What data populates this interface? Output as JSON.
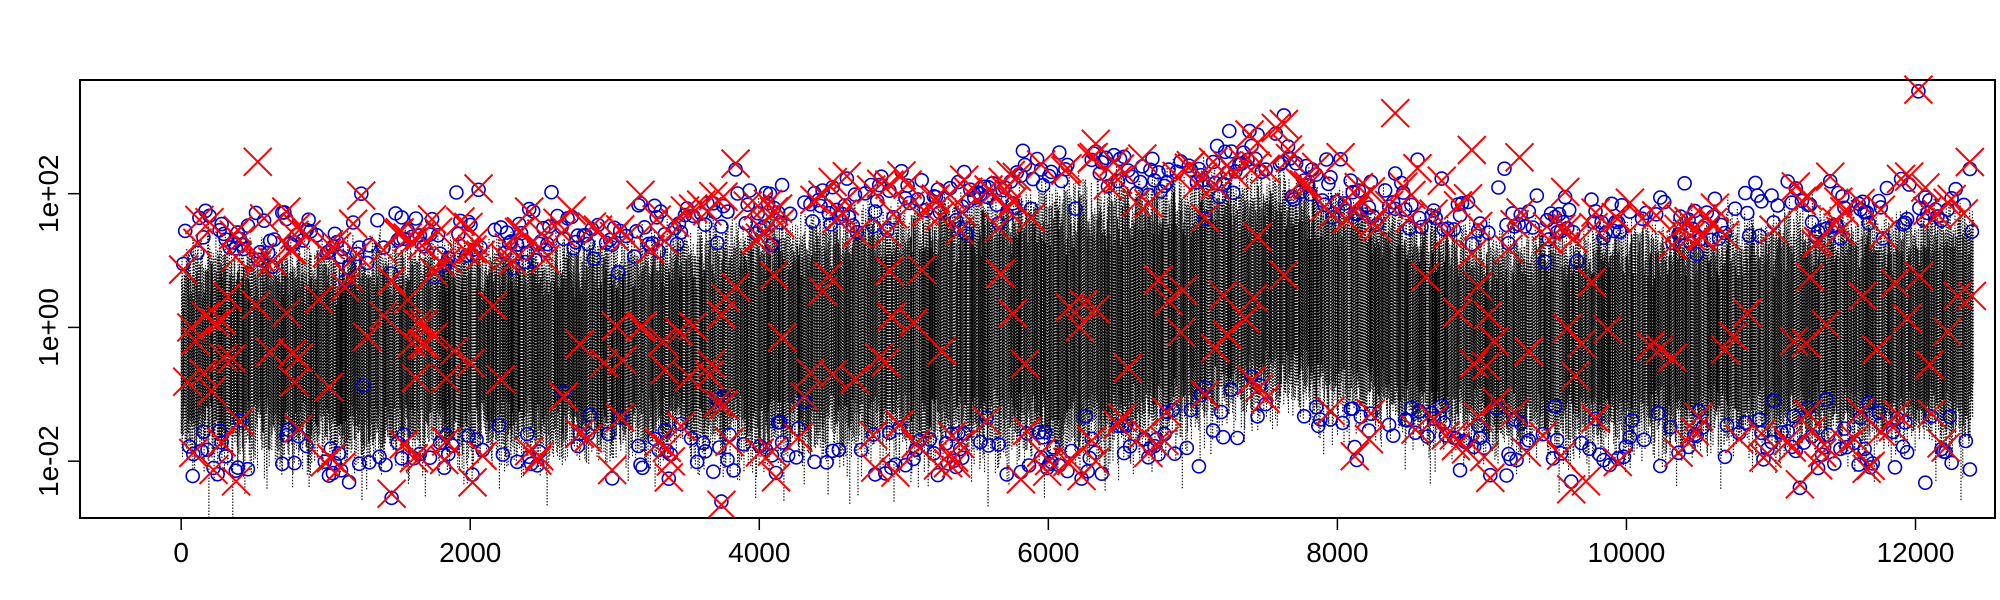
{
  "chart_data": {
    "type": "scatter",
    "title": "",
    "xlabel": "",
    "ylabel": "",
    "x_range": [
      -700,
      12550
    ],
    "y_range_log10": [
      -2.85,
      3.7
    ],
    "y_scale": "log10",
    "x_ticks": [
      {
        "value": 0,
        "label": "0"
      },
      {
        "value": 2000,
        "label": "2000"
      },
      {
        "value": 4000,
        "label": "4000"
      },
      {
        "value": 6000,
        "label": "6000"
      },
      {
        "value": 8000,
        "label": "8000"
      },
      {
        "value": 10000,
        "label": "10000"
      },
      {
        "value": 12000,
        "label": "12000"
      }
    ],
    "y_ticks": [
      {
        "value": 0.01,
        "label": "1e-02"
      },
      {
        "value": 1,
        "label": "1e+00"
      },
      {
        "value": 100,
        "label": "1e+02"
      }
    ],
    "grid": false,
    "legend": "none",
    "n_points": 12400,
    "series": [
      {
        "kind": "vertical dotted lines",
        "color": "#000000",
        "approx_band_log10": [
          [
            0,
            -1.7,
            1.2
          ],
          [
            3000,
            -1.6,
            1.3
          ],
          [
            6400,
            -1.7,
            2.2
          ],
          [
            7600,
            -0.9,
            2.3
          ],
          [
            9000,
            -1.5,
            1.4
          ],
          [
            12400,
            -1.5,
            1.8
          ]
        ]
      },
      {
        "kind": "open circles",
        "color": "#0000cc",
        "highlighted_points": [
          {
            "x": 80,
            "y": 0.006
          },
          {
            "x": 8400,
            "y": 200
          },
          {
            "x": 12020,
            "y": 3400
          },
          {
            "x": 11200,
            "y": 0.004
          },
          {
            "x": 3500,
            "y": 60
          }
        ]
      },
      {
        "kind": "crosses",
        "color": "#ff0000",
        "highlighted_points": [
          {
            "x": 380,
            "y": 0.005
          },
          {
            "x": 530,
            "y": 300
          },
          {
            "x": 8400,
            "y": 1600
          },
          {
            "x": 8930,
            "y": 450
          },
          {
            "x": 9260,
            "y": 350
          },
          {
            "x": 12020,
            "y": 3600
          },
          {
            "x": 11200,
            "y": 0.0045
          },
          {
            "x": 9720,
            "y": 0.005
          }
        ]
      }
    ]
  }
}
